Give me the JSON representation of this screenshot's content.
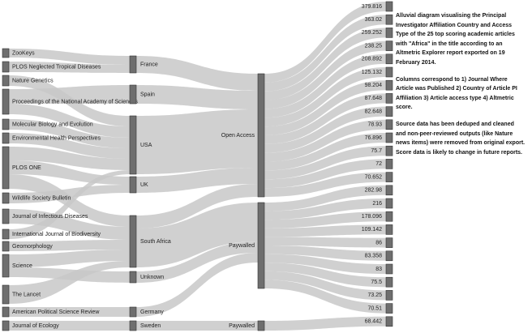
{
  "journals": [
    "ZooKeys",
    "PLOS Neglected Tropical Diseases",
    "Nature Genetics",
    "Proceedings of the National Academy of Sciences",
    "Molecular Biology and Evolution",
    "Environmental Health Perspectives",
    "PLOS ONE",
    "Wildlife Society Bulletin",
    "Journal of Infectious Diseases",
    "International Journal of Biodiversity",
    "Geomorphology",
    "Science",
    "The Lancet",
    "American Political Science Review",
    "Journal of Ecology"
  ],
  "countries": [
    "France",
    "Spain",
    "USA",
    "UK",
    "South Africa",
    "Unknown",
    "Germany",
    "Sweden"
  ],
  "access": [
    "Open Access",
    "Paywalled",
    "Paywalled"
  ],
  "scores": [
    379.816,
    363.02,
    259.252,
    238.25,
    208.892,
    125.132,
    98.204,
    87.648,
    82.648,
    78.93,
    76.896,
    75.7,
    72,
    70.652,
    282.98,
    216,
    178.096,
    109.142,
    86,
    83.358,
    83,
    75.5,
    73.25,
    70.51,
    68.442
  ],
  "description": [
    "Alluvial diagram visualising the Principal Investigator Affiliation Country and Access Type of the 25 top scoring academic articles with \"Africa\" in the title according to an Altmetric Explorer report exported on 19 February 2014.",
    "Columns correspond to 1) Journal Where Article was Published 2) Country of Article PI Affiliation 3) Article access type 4) Altmetric score.",
    "Source data has been deduped and cleaned and non-peer-reviewed outputs (like Nature news items) were removed from original export. Score data is likely to change in future reports."
  ]
}
